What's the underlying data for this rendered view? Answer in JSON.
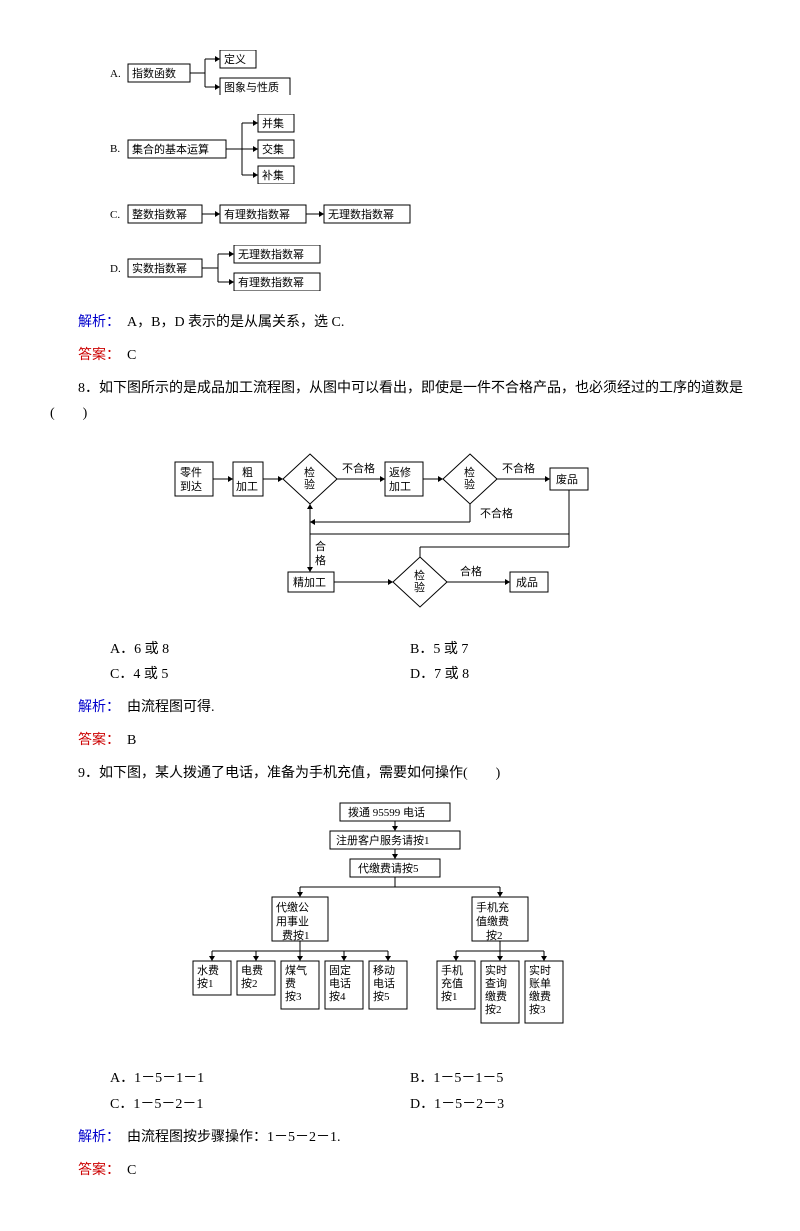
{
  "optA": {
    "label": "A.",
    "main": "指数函数",
    "children": [
      "定义",
      "图象与性质"
    ]
  },
  "optB": {
    "label": "B.",
    "main": "集合的基本运算",
    "children": [
      "并集",
      "交集",
      "补集"
    ]
  },
  "optC": {
    "label": "C.",
    "main": "整数指数幂",
    "steps": [
      "有理数指数幂",
      "无理数指数幂"
    ]
  },
  "optD": {
    "label": "D.",
    "main": "实数指数幂",
    "children": [
      "无理数指数幂",
      "有理数指数幂"
    ]
  },
  "q7": {
    "explain_label": "解析：",
    "explain_text": "　A，B，D 表示的是从属关系，选 C.",
    "answer_label": "答案：",
    "answer_text": "　C"
  },
  "q8": {
    "text": "8．如下图所示的是成品加工流程图，从图中可以看出，即使是一件不合格产品，也必须经过的工序的道数是(　　)",
    "diagram": {
      "boxes": {
        "arrive": "零件\n到达",
        "rough": "粗\n加工",
        "inspect1": "检\n验",
        "rework": "返修\n加工",
        "inspect2": "检\n验",
        "scrap": "废品",
        "fine": "精加工",
        "inspect3": "检\n验",
        "product": "成品"
      },
      "labels": {
        "fail": "不合格",
        "pass": "合格"
      }
    },
    "optA": "A．6 或 8",
    "optB": "B．5 或 7",
    "optC": "C．4 或 5",
    "optD": "D．7 或 8",
    "explain_label": "解析：",
    "explain_text": "　由流程图可得.",
    "answer_label": "答案：",
    "answer_text": "　B"
  },
  "q9": {
    "text": "9．如下图，某人拨通了电话，准备为手机充值，需要如何操作(　　)",
    "tree": {
      "root": "拨通 95599 电话",
      "l1": "注册客户服务请按1",
      "l2": "代缴费请按5",
      "b1": "代缴公\n用事业\n费按1",
      "b2": "手机充\n值缴费\n按2",
      "leaves1": [
        "水费\n按1",
        "电费\n按2",
        "煤气\n费\n按3",
        "固定\n电话\n按4",
        "移动\n电话\n按5"
      ],
      "leaves2": [
        "手机\n充值\n按1",
        "实时\n查询\n缴费\n按2",
        "实时\n账单\n缴费\n按3"
      ]
    },
    "optA": "A．1－5－1－1",
    "optB": "B．1－5－1－5",
    "optC": "C．1－5－2－1",
    "optD": "D．1－5－2－3",
    "explain_label": "解析：",
    "explain_text": "　由流程图按步骤操作：1－5－2－1.",
    "answer_label": "答案：",
    "answer_text": "　C"
  }
}
